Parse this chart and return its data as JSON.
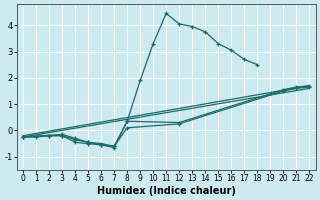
{
  "xlabel": "Humidex (Indice chaleur)",
  "xlim": [
    -0.5,
    22.5
  ],
  "ylim": [
    -1.5,
    4.8
  ],
  "xticks": [
    0,
    1,
    2,
    3,
    4,
    5,
    6,
    7,
    8,
    9,
    10,
    11,
    12,
    13,
    14,
    15,
    16,
    17,
    18,
    19,
    20,
    21,
    22
  ],
  "yticks": [
    -1,
    0,
    1,
    2,
    3,
    4
  ],
  "bg_color": "#cdeaf0",
  "grid_color": "#ffffff",
  "line_color": "#1a6b6b",
  "line1_x": [
    0,
    1,
    2,
    3,
    4,
    5,
    6,
    7,
    8,
    9,
    10,
    11,
    12,
    13,
    14,
    15,
    16,
    17,
    18
  ],
  "line1_y": [
    -0.25,
    -0.25,
    -0.2,
    -0.2,
    -0.35,
    -0.45,
    -0.55,
    -0.6,
    0.35,
    1.9,
    3.3,
    4.45,
    4.05,
    3.95,
    3.75,
    3.3,
    3.05,
    2.7,
    2.5
  ],
  "line2_x": [
    0,
    2,
    3,
    4,
    5,
    6,
    7,
    8,
    12,
    20,
    21,
    22
  ],
  "line2_y": [
    -0.25,
    -0.2,
    -0.2,
    -0.45,
    -0.5,
    -0.55,
    -0.65,
    0.35,
    0.3,
    1.55,
    1.65,
    1.7
  ],
  "line3_x": [
    0,
    3,
    4,
    5,
    6,
    7,
    8,
    12,
    20,
    21,
    22
  ],
  "line3_y": [
    -0.25,
    -0.15,
    -0.3,
    -0.45,
    -0.5,
    -0.6,
    0.1,
    0.25,
    1.5,
    1.6,
    1.65
  ],
  "line4_x": [
    0,
    22
  ],
  "line4_y": [
    -0.2,
    1.7
  ],
  "line5_x": [
    0,
    22
  ],
  "line5_y": [
    -0.25,
    1.6
  ]
}
